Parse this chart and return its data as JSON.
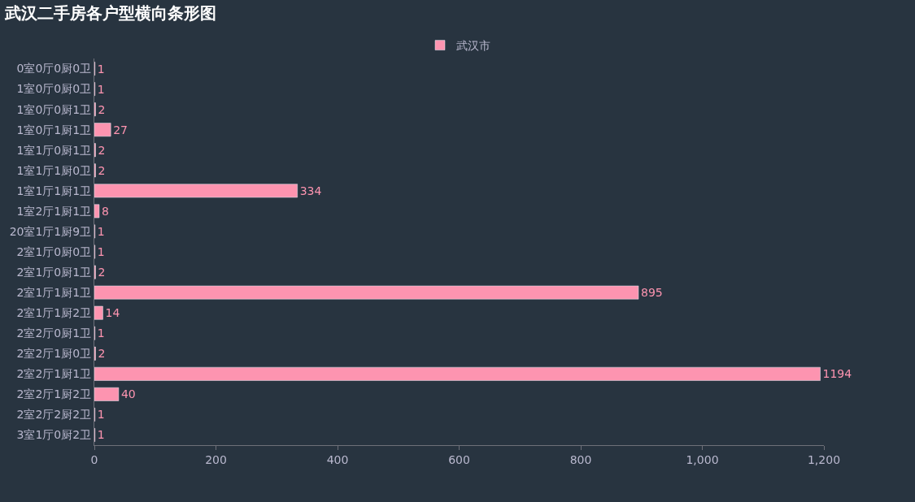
{
  "chart_data": {
    "type": "bar",
    "orientation": "horizontal",
    "title": "武汉二手房各户型横向条形图",
    "categories": [
      "0室0厅0厨0卫",
      "1室0厅0厨0卫",
      "1室0厅0厨1卫",
      "1室0厅1厨1卫",
      "1室1厅0厨1卫",
      "1室1厅1厨0卫",
      "1室1厅1厨1卫",
      "1室2厅1厨1卫",
      "20室1厅1厨9卫",
      "2室1厅0厨0卫",
      "2室1厅0厨1卫",
      "2室1厅1厨1卫",
      "2室1厅1厨2卫",
      "2室2厅0厨1卫",
      "2室2厅1厨0卫",
      "2室2厅1厨1卫",
      "2室2厅1厨2卫",
      "2室2厅2厨2卫",
      "3室1厅0厨2卫"
    ],
    "series": [
      {
        "name": "武汉市",
        "color": "#fd94b0",
        "values": [
          1,
          1,
          2,
          27,
          2,
          2,
          334,
          8,
          1,
          1,
          2,
          895,
          14,
          1,
          2,
          1194,
          40,
          1,
          1
        ]
      }
    ],
    "xlim": [
      0,
      1200
    ],
    "xticks": [
      0,
      200,
      400,
      600,
      800,
      {
        "value": 1000,
        "label": "1,000"
      },
      {
        "value": 1200,
        "label": "1,200"
      }
    ],
    "data_labels": true,
    "grid": false,
    "legend": "top"
  }
}
